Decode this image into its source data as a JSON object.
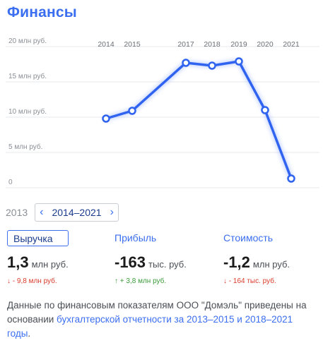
{
  "section_title": "Финансы",
  "chart_data": {
    "type": "line",
    "x": [
      "2014",
      "2015",
      "2017",
      "2018",
      "2019",
      "2020",
      "2021"
    ],
    "values": [
      9.8,
      10.9,
      17.7,
      17.3,
      17.9,
      11.0,
      1.3
    ],
    "y_ticks": [
      "20 млн руб.",
      "15 млн руб.",
      "10 млн руб.",
      "5 млн руб.",
      "0"
    ],
    "y_tick_values": [
      20,
      15,
      10,
      5,
      0
    ],
    "ylim": [
      0,
      20
    ],
    "grid": true,
    "line_color": "#2f63f0"
  },
  "year_nav": {
    "prev_year": "2013",
    "range_label": "2014–2021",
    "prev_icon": "chevron-left-icon",
    "next_icon": "chevron-right-icon"
  },
  "metrics": [
    {
      "tab": "Выручка",
      "value": "1,3",
      "unit": "млн руб.",
      "delta": "↓ - 9,8 млн руб.",
      "delta_dir": "down"
    },
    {
      "tab": "Прибыль",
      "value": "-163",
      "unit": "тыс. руб.",
      "delta": "↑ + 3,8 млн руб.",
      "delta_dir": "up"
    },
    {
      "tab": "Стоимость",
      "value": "-1,2",
      "unit": "млн руб.",
      "delta": "↓ - 164 тыс. руб.",
      "delta_dir": "down"
    }
  ],
  "footer": {
    "text": "Данные по финансовым показателям ООО \"Домэль\" приведены на основании ",
    "link": "бухгалтерской отчетности за 2013–2015 и 2018–2021 годы",
    "end": "."
  }
}
